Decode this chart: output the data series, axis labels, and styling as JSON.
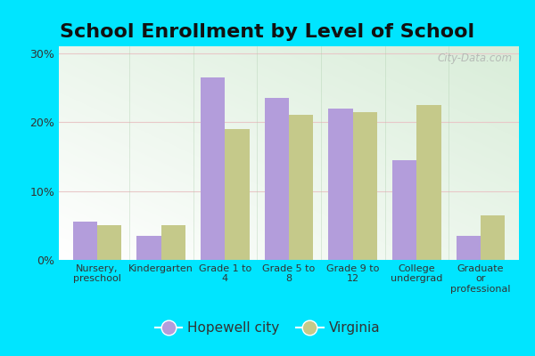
{
  "title": "School Enrollment by Level of School",
  "categories": [
    "Nursery,\npreschool",
    "Kindergarten",
    "Grade 1 to\n4",
    "Grade 5 to\n8",
    "Grade 9 to\n12",
    "College\nundergrad",
    "Graduate\nor\nprofessional"
  ],
  "hopewell": [
    5.5,
    3.5,
    26.5,
    23.5,
    22.0,
    14.5,
    3.5
  ],
  "virginia": [
    5.0,
    5.0,
    19.0,
    21.0,
    21.5,
    22.5,
    6.5
  ],
  "hopewell_color": "#b39ddb",
  "virginia_color": "#c5c98a",
  "background_outer": "#00e5ff",
  "ylim": [
    0,
    31
  ],
  "yticks": [
    0,
    10,
    20,
    30
  ],
  "ytick_labels": [
    "0%",
    "10%",
    "20%",
    "30%"
  ],
  "legend_hopewell": "Hopewell city",
  "legend_virginia": "Virginia",
  "watermark": "City-Data.com",
  "bar_width": 0.38,
  "title_fontsize": 16
}
